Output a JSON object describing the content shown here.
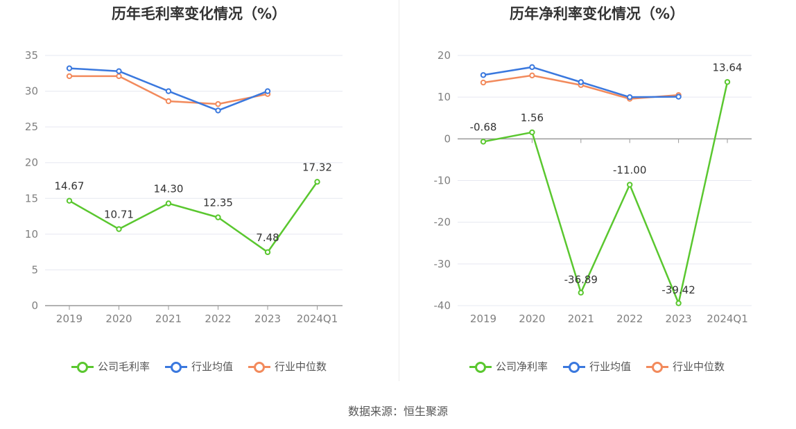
{
  "source": "数据来源：恒生聚源",
  "colors": {
    "company": "#5ac72f",
    "industry_avg": "#3a78de",
    "industry_median": "#f28a5c"
  },
  "chart_data": [
    {
      "type": "line",
      "title": "历年毛利率变化情况（%）",
      "categories": [
        "2019",
        "2020",
        "2021",
        "2022",
        "2023",
        "2024Q1"
      ],
      "ylim": [
        0,
        35
      ],
      "yticks": [
        0,
        5,
        10,
        15,
        20,
        25,
        30,
        35
      ],
      "grid": true,
      "legend_position": "bottom-center",
      "series": [
        {
          "name": "公司毛利率",
          "key": "company",
          "values": [
            14.67,
            10.71,
            14.3,
            12.35,
            7.48,
            17.32
          ],
          "labels": [
            "14.67",
            "10.71",
            "14.30",
            "12.35",
            "7.48",
            "17.32"
          ]
        },
        {
          "name": "行业均值",
          "key": "industry_avg",
          "values": [
            33.2,
            32.8,
            30.0,
            27.3,
            30.0,
            null
          ]
        },
        {
          "name": "行业中位数",
          "key": "industry_median",
          "values": [
            32.1,
            32.1,
            28.6,
            28.2,
            29.6,
            null
          ]
        }
      ]
    },
    {
      "type": "line",
      "title": "历年净利率变化情况（%）",
      "categories": [
        "2019",
        "2020",
        "2021",
        "2022",
        "2023",
        "2024Q1"
      ],
      "ylim": [
        -40,
        20
      ],
      "yticks": [
        -40,
        -30,
        -20,
        -10,
        0,
        10,
        20
      ],
      "grid": true,
      "legend_position": "bottom-center",
      "series": [
        {
          "name": "公司净利率",
          "key": "company",
          "values": [
            -0.68,
            1.56,
            -36.89,
            -11.0,
            -39.42,
            13.64
          ],
          "labels": [
            "-0.68",
            "1.56",
            "-36.89",
            "-11.00",
            "-39.42",
            "13.64"
          ]
        },
        {
          "name": "行业均值",
          "key": "industry_avg",
          "values": [
            15.3,
            17.2,
            13.6,
            10.0,
            10.1,
            null
          ]
        },
        {
          "name": "行业中位数",
          "key": "industry_median",
          "values": [
            13.5,
            15.2,
            12.9,
            9.6,
            10.5,
            null
          ]
        }
      ]
    }
  ]
}
